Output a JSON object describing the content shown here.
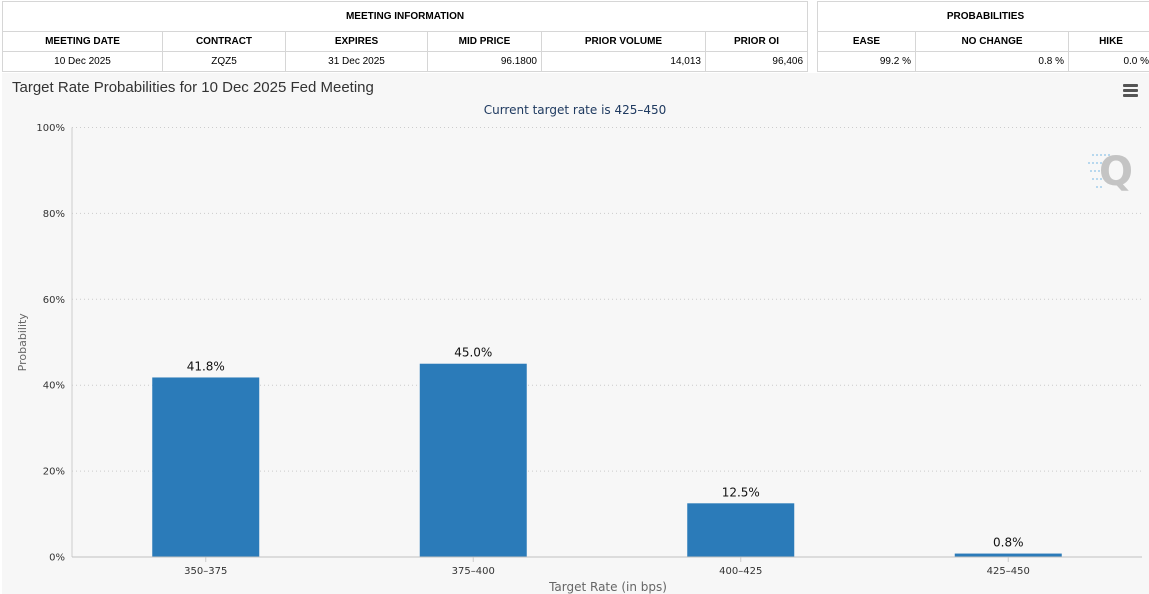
{
  "meeting_info": {
    "group_label": "MEETING INFORMATION",
    "headers": [
      "MEETING DATE",
      "CONTRACT",
      "EXPIRES",
      "MID PRICE",
      "PRIOR VOLUME",
      "PRIOR OI"
    ],
    "values": [
      "10 Dec 2025",
      "ZQZ5",
      "31 Dec 2025",
      "96.1800",
      "14,013",
      "96,406"
    ]
  },
  "probabilities": {
    "group_label": "PROBABILITIES",
    "headers": [
      "EASE",
      "NO CHANGE",
      "HIKE"
    ],
    "values": [
      "99.2 %",
      "0.8 %",
      "0.0 %"
    ]
  },
  "chart": {
    "menu_icon": "hamburger-menu-icon",
    "watermark_icon": "q-logo-watermark"
  },
  "chart_data": {
    "type": "bar",
    "title": "Target Rate Probabilities for 10 Dec 2025 Fed Meeting",
    "subtitle": "Current target rate is 425–450",
    "xlabel": "Target Rate (in bps)",
    "ylabel": "Probability",
    "categories": [
      "350–375",
      "375–400",
      "400–425",
      "425–450"
    ],
    "values": [
      41.8,
      45.0,
      12.5,
      0.8
    ],
    "data_labels": [
      "41.8%",
      "45.0%",
      "12.5%",
      "0.8%"
    ],
    "ylim": [
      0,
      100
    ],
    "yticks": [
      0,
      20,
      40,
      60,
      80,
      100
    ],
    "ytick_labels": [
      "0%",
      "20%",
      "40%",
      "60%",
      "80%",
      "100%"
    ],
    "grid": true,
    "bar_color": "#2b7bb9"
  }
}
